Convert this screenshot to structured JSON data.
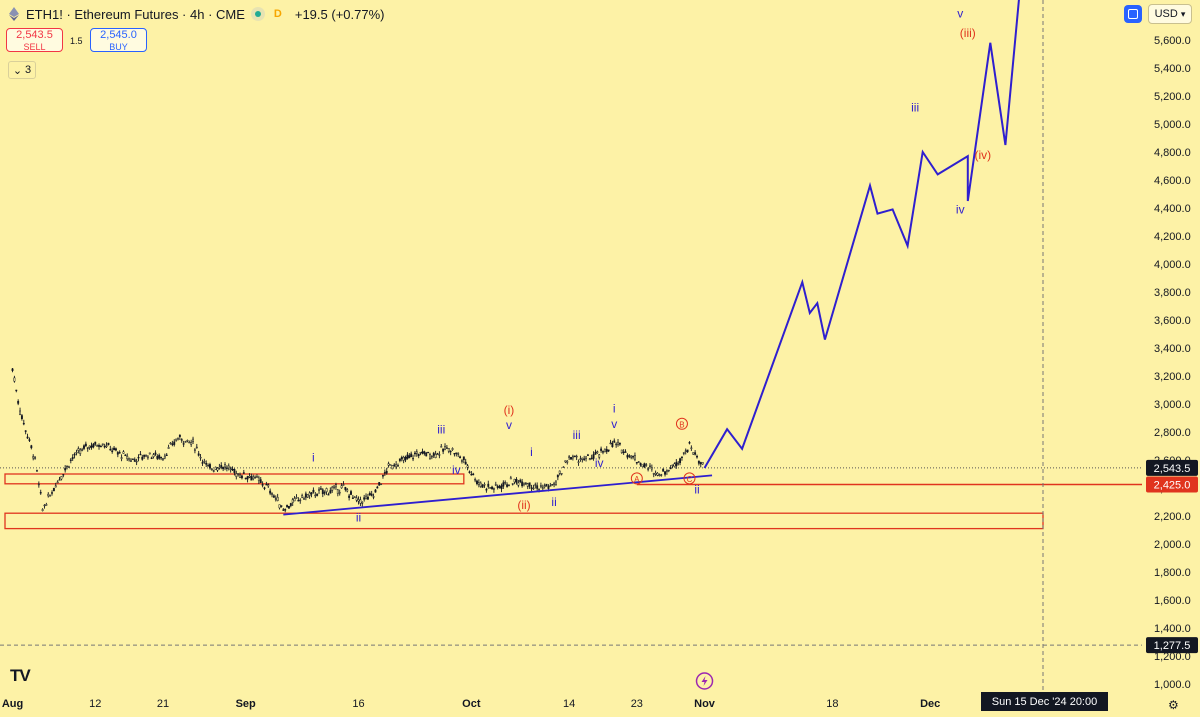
{
  "header": {
    "title": "ETH1! · Ethereum Futures · 4h · CME",
    "data_badge": "D",
    "change": "+19.5 (+0.77%)"
  },
  "trade": {
    "sell_price": "2,543.5",
    "sell_label": "SELL",
    "spread": "1.5",
    "buy_price": "2,545.0",
    "buy_label": "BUY"
  },
  "indicators_collapse": {
    "count": "3"
  },
  "toolbar": {
    "currency": "USD"
  },
  "logo_text": "TV",
  "crosshair_date": "Sun 15 Dec '24  20:00",
  "colors": {
    "background": "#fdf2a6",
    "wave_blue": "#2f1fcf",
    "wave_red": "#e0341e",
    "zone_red": "#e0341e",
    "candle": "#131722",
    "last_price_bg": "#131722"
  },
  "chart_data": {
    "type": "line",
    "symbol": "ETH1!",
    "x_axis": {
      "type": "date",
      "ticks": [
        "Aug",
        "12",
        "21",
        "Sep",
        "16",
        "Oct",
        "14",
        "23",
        "Nov",
        "18",
        "Dec"
      ]
    },
    "y_axis": {
      "range": [
        950,
        5900
      ],
      "ticks": [
        1000,
        1200,
        1400,
        1600,
        1800,
        2000,
        2200,
        2400,
        2600,
        2800,
        3000,
        3200,
        3400,
        3600,
        3800,
        4000,
        4200,
        4400,
        4600,
        4800,
        5000,
        5200,
        5400,
        5600
      ],
      "tick_labels": [
        "1,000.0",
        "1,200.0",
        "1,400.0",
        "1,600.0",
        "1,800.0",
        "2,000.0",
        "2,200.0",
        "2,400.0",
        "2,600.0",
        "2,800.0",
        "3,000.0",
        "3,200.0",
        "3,400.0",
        "3,600.0",
        "3,800.0",
        "4,000.0",
        "4,200.0",
        "4,400.0",
        "4,600.0",
        "4,800.0",
        "5,000.0",
        "5,200.0",
        "5,400.0",
        "5,600.0"
      ]
    },
    "price_labels": [
      {
        "label": "2,543.5",
        "value": 2543.5,
        "style": "last"
      },
      {
        "label": "2,425.0",
        "value": 2425,
        "style": "red"
      },
      {
        "label": "1,277.5",
        "value": 1277.5,
        "style": "last"
      }
    ],
    "price_history": [
      [
        "2024-08-01",
        3250
      ],
      [
        "2024-08-02",
        2950
      ],
      [
        "2024-08-04",
        2600
      ],
      [
        "2024-08-05",
        2250
      ],
      [
        "2024-08-07",
        2450
      ],
      [
        "2024-08-09",
        2620
      ],
      [
        "2024-08-11",
        2700
      ],
      [
        "2024-08-13",
        2720
      ],
      [
        "2024-08-15",
        2650
      ],
      [
        "2024-08-17",
        2600
      ],
      [
        "2024-08-19",
        2640
      ],
      [
        "2024-08-21",
        2620
      ],
      [
        "2024-08-23",
        2760
      ],
      [
        "2024-08-25",
        2720
      ],
      [
        "2024-08-27",
        2540
      ],
      [
        "2024-08-29",
        2560
      ],
      [
        "2024-08-31",
        2500
      ],
      [
        "2024-09-02",
        2480
      ],
      [
        "2024-09-04",
        2400
      ],
      [
        "2024-09-06",
        2250
      ],
      [
        "2024-09-08",
        2320
      ],
      [
        "2024-09-10",
        2360
      ],
      [
        "2024-09-12",
        2380
      ],
      [
        "2024-09-14",
        2400
      ],
      [
        "2024-09-16",
        2300
      ],
      [
        "2024-09-18",
        2350
      ],
      [
        "2024-09-20",
        2550
      ],
      [
        "2024-09-22",
        2600
      ],
      [
        "2024-09-24",
        2650
      ],
      [
        "2024-09-26",
        2640
      ],
      [
        "2024-09-28",
        2690
      ],
      [
        "2024-09-30",
        2600
      ],
      [
        "2024-10-02",
        2430
      ],
      [
        "2024-10-04",
        2400
      ],
      [
        "2024-10-06",
        2440
      ],
      [
        "2024-10-08",
        2450
      ],
      [
        "2024-10-10",
        2400
      ],
      [
        "2024-10-12",
        2420
      ],
      [
        "2024-10-14",
        2620
      ],
      [
        "2024-10-16",
        2600
      ],
      [
        "2024-10-18",
        2640
      ],
      [
        "2024-10-20",
        2720
      ],
      [
        "2024-10-22",
        2640
      ],
      [
        "2024-10-24",
        2560
      ],
      [
        "2024-10-26",
        2500
      ],
      [
        "2024-10-28",
        2560
      ],
      [
        "2024-10-30",
        2700
      ],
      [
        "2024-11-01",
        2540
      ]
    ],
    "projection": [
      [
        "2024-11-01",
        2543
      ],
      [
        "2024-11-04",
        2820
      ],
      [
        "2024-11-06",
        2680
      ],
      [
        "2024-11-14",
        3870
      ],
      [
        "2024-11-15",
        3650
      ],
      [
        "2024-11-16",
        3720
      ],
      [
        "2024-11-17",
        3460
      ],
      [
        "2024-11-23",
        4560
      ],
      [
        "2024-11-24",
        4360
      ],
      [
        "2024-11-26",
        4390
      ],
      [
        "2024-11-28",
        4130
      ],
      [
        "2024-11-30",
        4800
      ],
      [
        "2024-12-02",
        4640
      ],
      [
        "2024-12-06",
        4770
      ],
      [
        "2024-12-06",
        4450
      ],
      [
        "2024-12-09",
        5580
      ],
      [
        "2024-12-11",
        4850
      ],
      [
        "2024-12-13",
        6000
      ]
    ],
    "trendline": [
      [
        "2024-09-06",
        2210
      ],
      [
        "2024-11-02",
        2490
      ]
    ],
    "zones": [
      {
        "from": "2024-07-31",
        "to": "2024-09-30",
        "low": 2430,
        "high": 2500
      },
      {
        "from": "2024-07-31",
        "to": "2024-12-16",
        "low": 2110,
        "high": 2220
      }
    ],
    "reference_lines": [
      {
        "value": 2425,
        "style": "red",
        "from": "2024-10-23"
      },
      {
        "value": 2543.5,
        "style": "dotted"
      },
      {
        "value": 1277.5,
        "style": "dashed"
      }
    ],
    "annotations": [
      {
        "text": "i",
        "x": "2024-09-10",
        "y": 2590,
        "color": "blue"
      },
      {
        "text": "ii",
        "x": "2024-09-16",
        "y": 2160,
        "color": "blue"
      },
      {
        "text": "iii",
        "x": "2024-09-27",
        "y": 2790,
        "color": "blue"
      },
      {
        "text": "iv",
        "x": "2024-09-29",
        "y": 2500,
        "color": "blue"
      },
      {
        "text": "v",
        "x": "2024-10-06",
        "y": 2820,
        "color": "blue"
      },
      {
        "text": "(i)",
        "x": "2024-10-06",
        "y": 2930,
        "color": "red"
      },
      {
        "text": "(ii)",
        "x": "2024-10-08",
        "y": 2250,
        "color": "red"
      },
      {
        "text": "i",
        "x": "2024-10-09",
        "y": 2630,
        "color": "blue"
      },
      {
        "text": "ii",
        "x": "2024-10-12",
        "y": 2270,
        "color": "blue"
      },
      {
        "text": "iii",
        "x": "2024-10-15",
        "y": 2750,
        "color": "blue"
      },
      {
        "text": "iv",
        "x": "2024-10-18",
        "y": 2550,
        "color": "blue"
      },
      {
        "text": "i",
        "x": "2024-10-20",
        "y": 2940,
        "color": "blue"
      },
      {
        "text": "v",
        "x": "2024-10-20",
        "y": 2830,
        "color": "blue"
      },
      {
        "text": "A",
        "x": "2024-10-23",
        "y": 2440,
        "color": "red",
        "circled": true
      },
      {
        "text": "B",
        "x": "2024-10-29",
        "y": 2830,
        "color": "red",
        "circled": true
      },
      {
        "text": "C",
        "x": "2024-10-30",
        "y": 2440,
        "color": "red",
        "circled": true
      },
      {
        "text": "ii",
        "x": "2024-10-31",
        "y": 2360,
        "color": "blue"
      },
      {
        "text": "iii",
        "x": "2024-11-29",
        "y": 5090,
        "color": "blue"
      },
      {
        "text": "iv",
        "x": "2024-12-05",
        "y": 4360,
        "color": "blue"
      },
      {
        "text": "v",
        "x": "2024-12-05",
        "y": 5760,
        "color": "blue"
      },
      {
        "text": "(iii)",
        "x": "2024-12-06",
        "y": 5620,
        "color": "red"
      },
      {
        "text": "(iv)",
        "x": "2024-12-08",
        "y": 4750,
        "color": "red"
      }
    ]
  }
}
